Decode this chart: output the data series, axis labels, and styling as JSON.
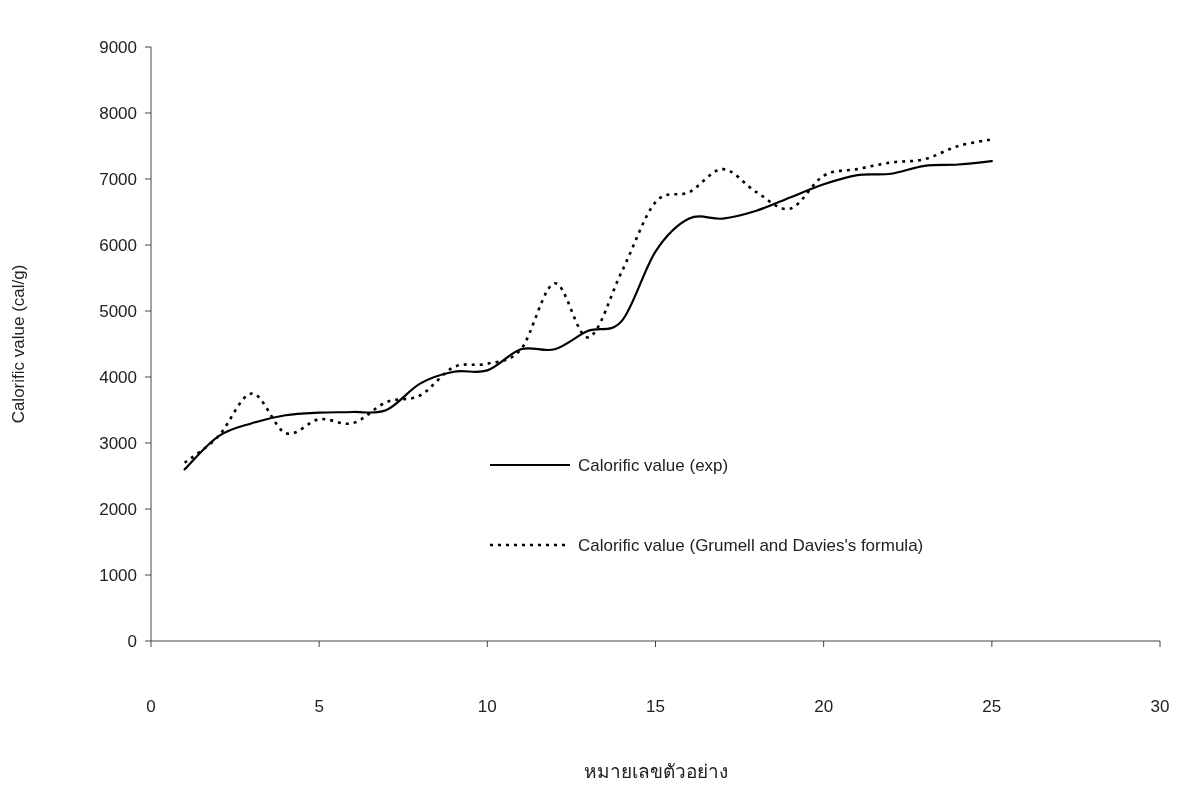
{
  "chart_data": {
    "type": "line",
    "xlabel": "หมายเลขตัวอย่าง",
    "ylabel": "Calorific value (cal/g)",
    "x": [
      1,
      2,
      3,
      4,
      5,
      6,
      7,
      8,
      9,
      10,
      11,
      12,
      13,
      14,
      15,
      16,
      17,
      18,
      19,
      20,
      21,
      22,
      23,
      24,
      25
    ],
    "series": [
      {
        "name": "Calorific value (exp)",
        "color": "#000000",
        "line_style": "solid",
        "values": [
          2600,
          3100,
          3300,
          3420,
          3460,
          3470,
          3500,
          3900,
          4080,
          4100,
          4420,
          4420,
          4700,
          4850,
          5900,
          6400,
          6400,
          6520,
          6720,
          6920,
          7060,
          7080,
          7200,
          7220,
          7270
        ]
      },
      {
        "name": "Calorific value (Grumell and Davies's formula)",
        "color": "#000000",
        "line_style": "dotted",
        "values": [
          2700,
          3100,
          3750,
          3150,
          3360,
          3300,
          3620,
          3720,
          4150,
          4200,
          4420,
          5420,
          4600,
          5600,
          6650,
          6800,
          7150,
          6800,
          6550,
          7050,
          7150,
          7250,
          7300,
          7500,
          7600
        ]
      }
    ],
    "xlim": [
      0,
      30
    ],
    "xticks": [
      0,
      5,
      10,
      15,
      20,
      25,
      30
    ],
    "ylim": [
      0,
      9000
    ],
    "yticks": [
      0,
      1000,
      2000,
      3000,
      4000,
      5000,
      6000,
      7000,
      8000,
      9000
    ],
    "legend": "right",
    "grid": false,
    "marker": "none"
  }
}
